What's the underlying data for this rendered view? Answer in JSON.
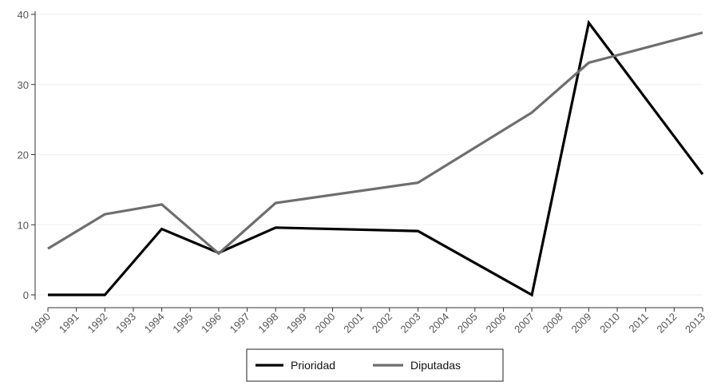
{
  "chart_data": {
    "type": "line",
    "title": "",
    "xlabel": "",
    "ylabel": "",
    "categories": [
      "1990",
      "1991",
      "1992",
      "1993",
      "1994",
      "1995",
      "1996",
      "1997",
      "1998",
      "1999",
      "2000",
      "2001",
      "2002",
      "2003",
      "2004",
      "2005",
      "2006",
      "2007",
      "2008",
      "2009",
      "2010",
      "2011",
      "2012",
      "2013"
    ],
    "series": [
      {
        "name": "Prioridad",
        "color": "#000000",
        "points": [
          {
            "x": "1990",
            "y": 0
          },
          {
            "x": "1992",
            "y": 0
          },
          {
            "x": "1994",
            "y": 9.4
          },
          {
            "x": "1996",
            "y": 6.0
          },
          {
            "x": "1998",
            "y": 9.6
          },
          {
            "x": "2003",
            "y": 9.1
          },
          {
            "x": "2007",
            "y": 0
          },
          {
            "x": "2009",
            "y": 38.8
          },
          {
            "x": "2013",
            "y": 17.2
          }
        ]
      },
      {
        "name": "Diputadas",
        "color": "#6e6e6e",
        "points": [
          {
            "x": "1990",
            "y": 6.6
          },
          {
            "x": "1992",
            "y": 11.5
          },
          {
            "x": "1994",
            "y": 12.9
          },
          {
            "x": "1996",
            "y": 5.9
          },
          {
            "x": "1998",
            "y": 13.1
          },
          {
            "x": "2003",
            "y": 16.0
          },
          {
            "x": "2007",
            "y": 26.0
          },
          {
            "x": "2009",
            "y": 33.1
          },
          {
            "x": "2013",
            "y": 37.4
          }
        ]
      }
    ],
    "yticks": [
      0,
      10,
      20,
      30,
      40
    ],
    "ylim": [
      0,
      40
    ],
    "grid": true,
    "legend": "bottom"
  }
}
